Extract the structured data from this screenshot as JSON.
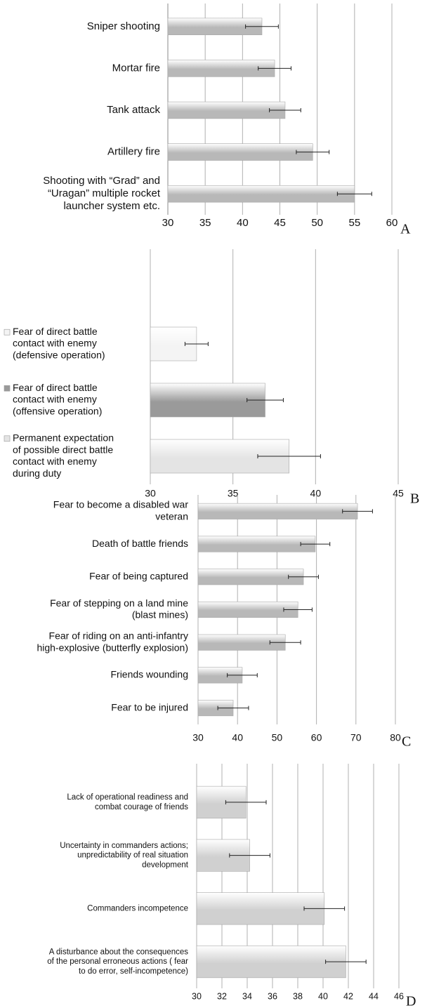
{
  "chart_data": [
    {
      "type": "bar",
      "orientation": "horizontal",
      "panel": "A",
      "categories": [
        [
          "Sniper shooting"
        ],
        [
          "Mortar fire"
        ],
        [
          "Tank attack"
        ],
        [
          "Artillery fire"
        ],
        [
          "Shooting with “Grad” and",
          "“Uragan” multiple rocket",
          "launcher system etc."
        ]
      ],
      "values": [
        42.6,
        44.3,
        45.7,
        49.4,
        55.0
      ],
      "errors": [
        2.2,
        2.2,
        2.1,
        2.2,
        2.3
      ],
      "xlim": [
        30,
        60
      ],
      "xticks": [
        30,
        35,
        40,
        45,
        50,
        55,
        60
      ],
      "grid": true,
      "color": "#b8b8b8"
    },
    {
      "type": "bar",
      "orientation": "horizontal",
      "panel": "B",
      "categories": [
        [
          "Fear of direct battle",
          "contact  with enemy",
          "(defensive operation)"
        ],
        [
          "Fear of direct battle",
          "contact  with enemy",
          "(offensive operation)"
        ],
        [
          "Permanent expectation",
          "of possible direct battle",
          "contact with enemy",
          "during duty"
        ]
      ],
      "values": [
        32.8,
        36.95,
        38.4
      ],
      "errors": [
        0.7,
        1.1,
        1.9
      ],
      "xlim": [
        30,
        45
      ],
      "xticks": [
        30,
        35,
        40,
        45
      ],
      "grid": true,
      "colors": [
        "#f4f4f4",
        "#9a9a9a",
        "#e4e4e4"
      ]
    },
    {
      "type": "bar",
      "orientation": "horizontal",
      "panel": "C",
      "categories": [
        [
          "Fear to become a disabled war",
          "veteran"
        ],
        [
          "Death of battle friends"
        ],
        [
          "Fear of being captured"
        ],
        [
          "Fear of stepping on a land mine",
          "(blast mines)"
        ],
        [
          "Fear of riding on an anti-infantry",
          "high-explosive (butterfly explosion)"
        ],
        [
          "Friends wounding"
        ],
        [
          "Fear to be injured"
        ]
      ],
      "values": [
        70.4,
        59.7,
        56.7,
        55.3,
        52.1,
        41.2,
        38.9
      ],
      "errors": [
        3.8,
        3.7,
        3.8,
        3.6,
        3.9,
        3.8,
        3.9
      ],
      "xlim": [
        30,
        80
      ],
      "xticks": [
        30,
        40,
        50,
        60,
        70,
        80
      ],
      "grid": true,
      "color": "#b8b8b8"
    },
    {
      "type": "bar",
      "orientation": "horizontal",
      "panel": "D",
      "categories": [
        [
          "Lack of operational readiness and",
          "combat courage of friends"
        ],
        [
          "Uncertainty in commanders actions;",
          "unpredictability of real situation",
          "development"
        ],
        [
          "Commanders incompetence"
        ],
        [
          "A disturbance about the consequences",
          "of the personal erroneous actions ( fear",
          "to do error, self-incompetence)"
        ]
      ],
      "values": [
        33.9,
        34.2,
        40.1,
        41.8
      ],
      "errors": [
        1.6,
        1.6,
        1.6,
        1.6
      ],
      "xlim": [
        30,
        46
      ],
      "xticks": [
        30,
        32,
        34,
        36,
        38,
        40,
        42,
        44,
        46
      ],
      "grid": true,
      "color": "#d0d0d0"
    }
  ]
}
